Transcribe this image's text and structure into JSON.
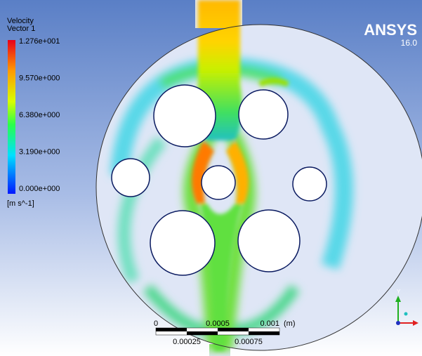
{
  "legend": {
    "title": "Velocity",
    "subtitle": "Vector 1",
    "labels": [
      "1.276e+001",
      "9.570e+000",
      "6.380e+000",
      "3.190e+000",
      "0.000e+000"
    ],
    "units": "[m s^-1]"
  },
  "logo": {
    "name": "ANSYS",
    "version": "16.0"
  },
  "scale_bar": {
    "top_labels": [
      "0",
      "0.0005",
      "0.001"
    ],
    "unit": "(m)",
    "bottom_labels": [
      "0.00025",
      "0.00075"
    ]
  },
  "triad": {
    "axis": "Y"
  }
}
